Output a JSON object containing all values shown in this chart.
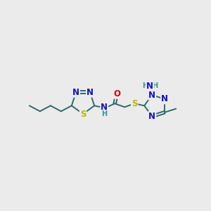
{
  "bg_color": "#ebebeb",
  "atom_colors": {
    "N": "#1010cc",
    "S": "#b8b800",
    "O": "#cc0000",
    "C": "#2d6b6b",
    "H": "#3a9090"
  },
  "bond_color": "#2d6b6b",
  "bond_lw": 1.4,
  "font_size_atoms": 8.5,
  "font_size_h": 7.0,
  "font_size_ch3": 7.5
}
